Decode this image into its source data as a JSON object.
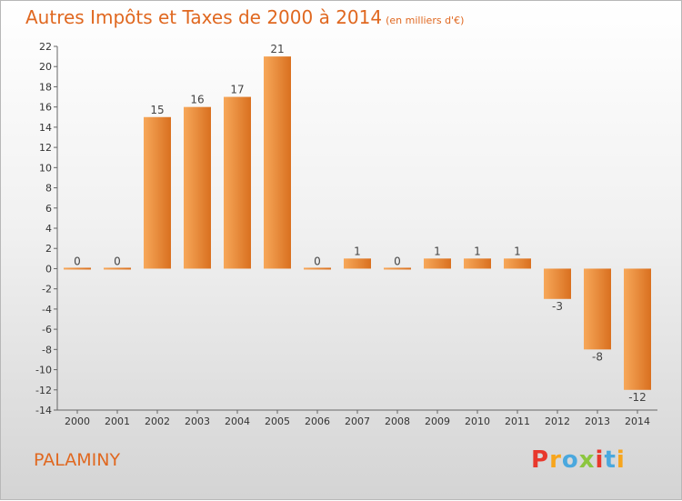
{
  "header": {
    "title": "Autres Impôts et Taxes de 2000 à 2014",
    "subtitle": "(en milliers d'€)"
  },
  "footer": {
    "commune": "PALAMINY",
    "brand": "Proxiti"
  },
  "colors": {
    "title": "#e06820",
    "bar_light": "#f7a85a",
    "bar_dark": "#d9701f",
    "axis": "#666666",
    "brand_letters": [
      "#e8382c",
      "#f7a51c",
      "#4aa8de",
      "#8cc63f",
      "#e8382c",
      "#4aa8de",
      "#f7a51c"
    ]
  },
  "chart_data": {
    "type": "bar",
    "categories": [
      "2000",
      "2001",
      "2002",
      "2003",
      "2004",
      "2005",
      "2006",
      "2007",
      "2008",
      "2009",
      "2010",
      "2011",
      "2012",
      "2013",
      "2014"
    ],
    "values": [
      0,
      0,
      15,
      16,
      17,
      21,
      0,
      1,
      0,
      1,
      1,
      1,
      -3,
      -8,
      -12
    ],
    "title": "Autres Impôts et Taxes de 2000 à 2014",
    "xlabel": "",
    "ylabel": "",
    "ylim": [
      -14,
      22
    ],
    "yticks": [
      -14,
      -12,
      -10,
      -8,
      -6,
      -4,
      -2,
      0,
      2,
      4,
      6,
      8,
      10,
      12,
      14,
      16,
      18,
      20,
      22
    ],
    "grid": false,
    "legend": "none"
  }
}
